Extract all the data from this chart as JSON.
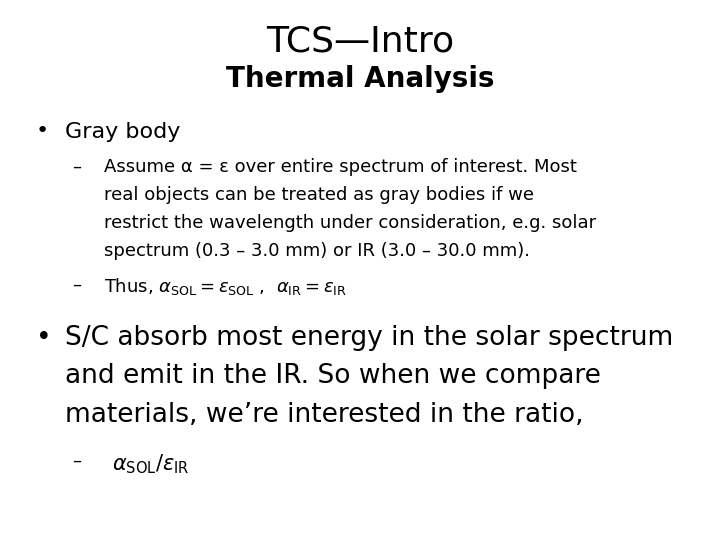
{
  "title_line1": "TCS—Intro",
  "title_line2": "Thermal Analysis",
  "title_fontsize": 26,
  "subtitle_fontsize": 20,
  "background_color": "#ffffff",
  "text_color": "#000000",
  "bullet1": "Gray body",
  "bullet1_fontsize": 16,
  "sub1_line1": "Assume α = ε over entire spectrum of interest. Most",
  "sub1_line2": "real objects can be treated as gray bodies if we",
  "sub1_line3": "restrict the wavelength under consideration, e.g. solar",
  "sub1_line4": "spectrum (0.3 – 3.0 mm) or IR (3.0 – 30.0 mm).",
  "sub1_fontsize": 13,
  "sub2_fontsize": 13,
  "bullet2_fontsize": 19,
  "bullet2_line1": "S/C absorb most energy in the solar spectrum",
  "bullet2_line2": "and emit in the IR. So when we compare",
  "bullet2_line3": "materials, we’re interested in the ratio,",
  "sub3_fontsize": 13,
  "thus_text": "Thus, "
}
